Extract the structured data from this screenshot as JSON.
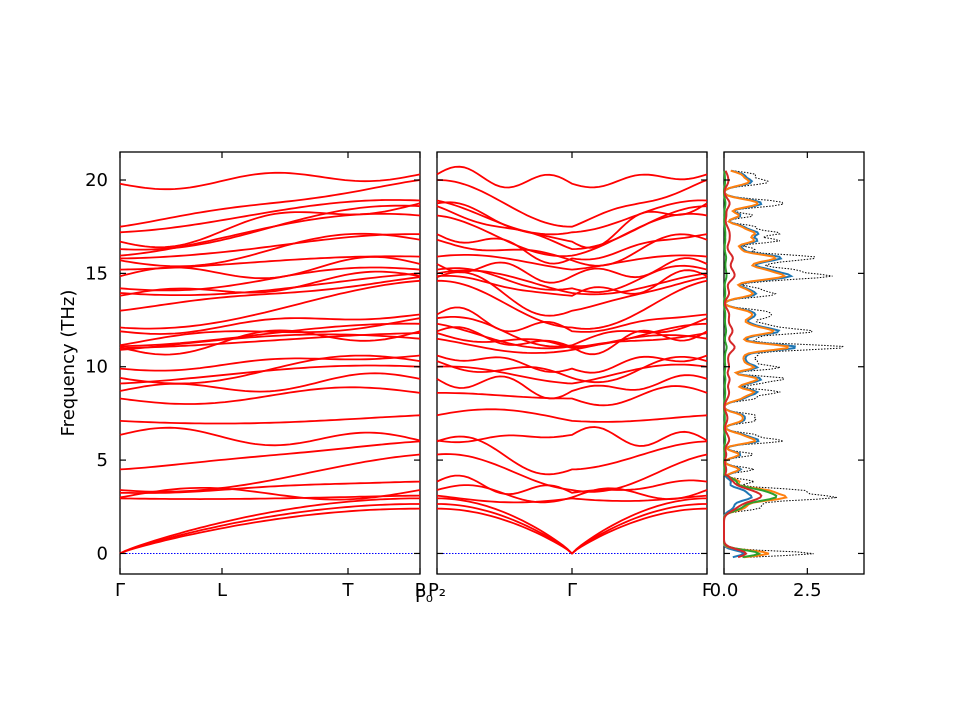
{
  "chart_data": {
    "type": "line",
    "ylabel": "Frequency (THz)",
    "ylim": [
      -1.1,
      21.5
    ],
    "yticks": [
      0,
      5,
      10,
      15,
      20
    ],
    "panels": [
      {
        "name": "band-structure-1",
        "path_labels": [
          "Γ",
          "L",
          "T",
          "P"
        ],
        "path_ticks": [
          0,
          0.34,
          0.76,
          1.0
        ]
      },
      {
        "name": "band-structure-2",
        "path_labels": [
          "P₂",
          "Γ",
          "F"
        ],
        "path_ticks": [
          0,
          0.5,
          1.0
        ],
        "boundary_label": "P₀"
      }
    ],
    "band_color": "#ff0000",
    "zero_line_color": "#0000ff",
    "gamma_frequencies": [
      0,
      0,
      0,
      2.95,
      3.0,
      3.25,
      3.4,
      4.5,
      6.35,
      7.1,
      8.3,
      8.7,
      9.1,
      9.4,
      9.9,
      10.9,
      11.0,
      11.05,
      11.1,
      11.15,
      11.9,
      12.1,
      13.0,
      13.8,
      13.95,
      14.2,
      14.85,
      15.2,
      15.7,
      15.8,
      15.95,
      16.3,
      16.7,
      17.2,
      17.5,
      19.8
    ],
    "p_frequencies": [
      2.4,
      2.65,
      2.95,
      3.1,
      3.4,
      3.85,
      5.3,
      6.0,
      6.05,
      7.4,
      8.6,
      9.35,
      10.0,
      10.3,
      10.6,
      11.5,
      11.8,
      11.9,
      12.3,
      12.6,
      12.8,
      14.6,
      14.8,
      14.85,
      15.0,
      15.2,
      15.5,
      15.9,
      16.8,
      17.1,
      18.1,
      18.6,
      18.75,
      18.9,
      20.0,
      20.3
    ],
    "dos": {
      "xticks": [
        0.0,
        2.5
      ],
      "xlim": [
        0.0,
        4.2
      ],
      "series": [
        {
          "color": "#000000",
          "style": "dotted"
        },
        {
          "color": "#1f77b4",
          "style": "solid"
        },
        {
          "color": "#ff7f0e",
          "style": "solid"
        },
        {
          "color": "#2ca02c",
          "style": "solid"
        },
        {
          "color": "#d62728",
          "style": "solid"
        }
      ]
    }
  }
}
